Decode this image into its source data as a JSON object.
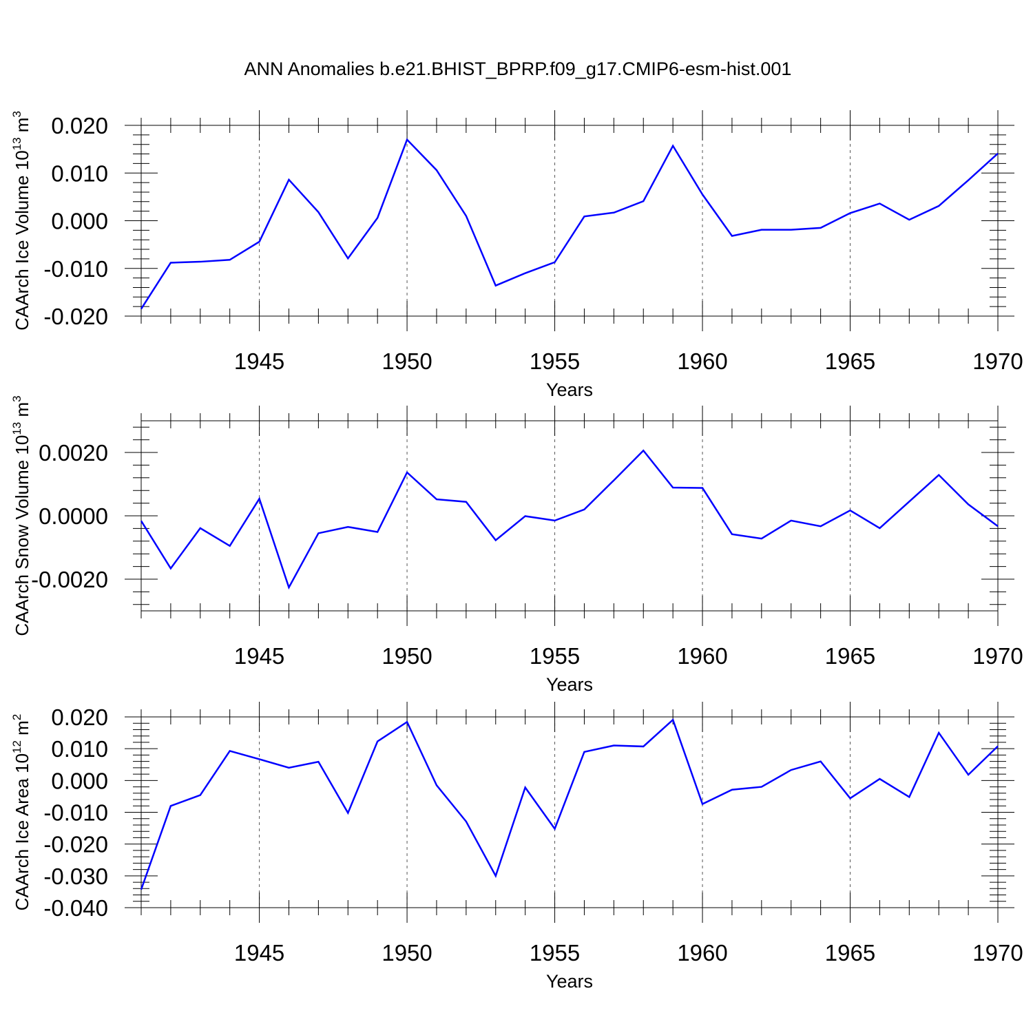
{
  "chart_data": {
    "type": "line",
    "title": "ANN Anomalies b.e21.BHIST_BPRP.f09_g17.CMIP6-esm-hist.001",
    "line_color": "#0000ff",
    "x": [
      1941,
      1942,
      1943,
      1944,
      1945,
      1946,
      1947,
      1948,
      1949,
      1950,
      1951,
      1952,
      1953,
      1954,
      1955,
      1956,
      1957,
      1958,
      1959,
      1960,
      1961,
      1962,
      1963,
      1964,
      1965,
      1966,
      1967,
      1968,
      1969,
      1970
    ],
    "xlim": [
      1941,
      1970
    ],
    "xticks": [
      1945,
      1950,
      1955,
      1960,
      1965,
      1970
    ],
    "xlabel": "Years",
    "grid": "vertical dashed at major x ticks",
    "panels": [
      {
        "id": "ice-volume",
        "ylabel": "CAArch Ice Volume 10",
        "ylabel_exp": "13",
        "ylabel_unit": " m",
        "ylabel_unit_exp": "3",
        "ylim": [
          -0.02,
          0.02
        ],
        "yticks": [
          -0.02,
          -0.01,
          0.0,
          0.01,
          0.02
        ],
        "ytick_labels": [
          "-0.020",
          "-0.010",
          "0.000",
          "0.010",
          "0.020"
        ],
        "values": [
          -0.0185,
          -0.0088,
          -0.0086,
          -0.0082,
          -0.0044,
          0.0086,
          0.0018,
          -0.0079,
          0.0006,
          0.017,
          0.0106,
          0.001,
          -0.0136,
          -0.011,
          -0.0087,
          0.0009,
          0.0017,
          0.0041,
          0.0157,
          0.0055,
          -0.0032,
          -0.0019,
          -0.0019,
          -0.0015,
          0.0016,
          0.0036,
          0.0002,
          0.0031,
          0.0085,
          0.0141
        ]
      },
      {
        "id": "snow-volume",
        "ylabel": "CAArch Snow Volume 10",
        "ylabel_exp": "13",
        "ylabel_unit": " m",
        "ylabel_unit_exp": "3",
        "ylim": [
          -0.003,
          0.003
        ],
        "yticks": [
          -0.002,
          0.0,
          0.002
        ],
        "ytick_labels": [
          "-0.0020",
          "0.0000",
          "0.0020"
        ],
        "values": [
          -0.00016,
          -0.00166,
          -0.00039,
          -0.00095,
          0.00054,
          -0.00226,
          -0.00055,
          -0.00035,
          -0.00051,
          0.00137,
          0.00052,
          0.00044,
          -0.00077,
          -1e-05,
          -0.00015,
          0.0002,
          0.00112,
          0.00206,
          0.00089,
          0.00088,
          -0.00058,
          -0.00072,
          -0.00015,
          -0.00033,
          0.00017,
          -0.00039,
          0.00045,
          0.00129,
          0.00036,
          -0.00033
        ]
      },
      {
        "id": "ice-area",
        "ylabel": "CAArch Ice Area 10",
        "ylabel_exp": "12",
        "ylabel_unit": " m",
        "ylabel_unit_exp": "2",
        "ylim": [
          -0.04,
          0.02
        ],
        "yticks": [
          -0.04,
          -0.03,
          -0.02,
          -0.01,
          0.0,
          0.01,
          0.02
        ],
        "ytick_labels": [
          "-0.040",
          "-0.030",
          "-0.020",
          "-0.010",
          "0.000",
          "0.010",
          "0.020"
        ],
        "values": [
          -0.0343,
          -0.008,
          -0.0046,
          0.0093,
          0.0067,
          0.004,
          0.0059,
          -0.0102,
          0.0123,
          0.0184,
          -0.0015,
          -0.0129,
          -0.03,
          -0.0022,
          -0.0152,
          0.009,
          0.011,
          0.0107,
          0.0191,
          -0.0074,
          -0.0029,
          -0.002,
          0.0033,
          0.006,
          -0.0056,
          0.0005,
          -0.0052,
          0.015,
          0.0018,
          0.0108
        ]
      }
    ]
  }
}
